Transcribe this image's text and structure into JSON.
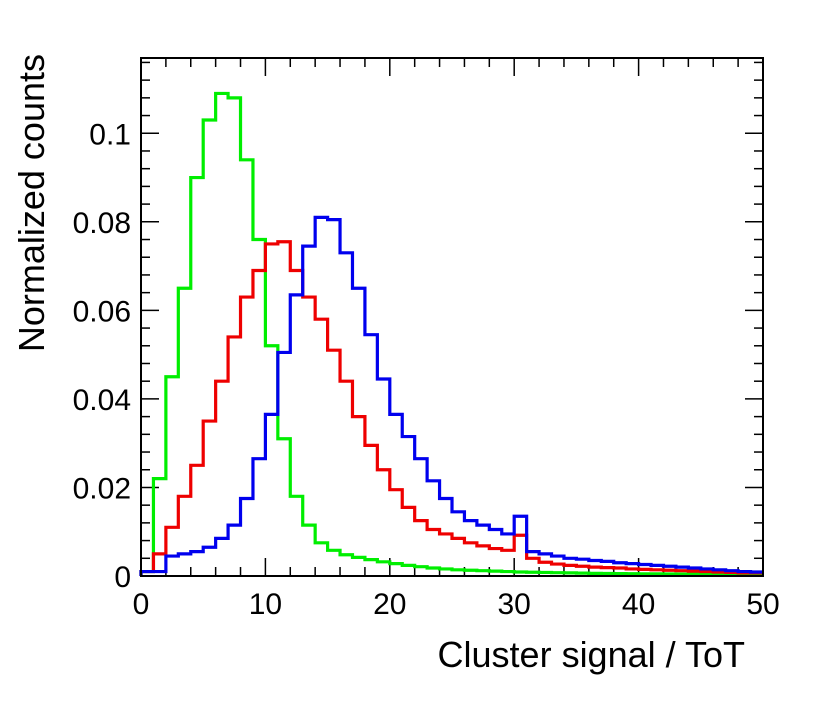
{
  "chart_data": {
    "type": "histogram",
    "title": "",
    "xlabel": "Cluster signal / ToT",
    "ylabel": "Normalized counts",
    "xlim": [
      0,
      50
    ],
    "ylim": [
      0,
      0.117
    ],
    "bin_width": 1,
    "x_ticks": [
      0,
      10,
      20,
      30,
      40,
      50
    ],
    "x_tick_labels": [
      "0",
      "10",
      "20",
      "30",
      "40",
      "50"
    ],
    "y_ticks": [
      0,
      0.02,
      0.04,
      0.06,
      0.08,
      0.1
    ],
    "y_tick_labels": [
      "0",
      "0.02",
      "0.04",
      "0.06",
      "0.08",
      "0.1"
    ],
    "series": [
      {
        "name": "green",
        "color": "#00ee00",
        "values": [
          0.001,
          0.022,
          0.045,
          0.065,
          0.09,
          0.103,
          0.109,
          0.108,
          0.094,
          0.076,
          0.052,
          0.031,
          0.018,
          0.0115,
          0.0075,
          0.0058,
          0.0048,
          0.0042,
          0.0037,
          0.0032,
          0.0028,
          0.0024,
          0.0021,
          0.0018,
          0.0016,
          0.0014,
          0.0013,
          0.0012,
          0.0011,
          0.001,
          0.0009,
          0.00085,
          0.0008,
          0.00075,
          0.0007,
          0.00065,
          0.0006,
          0.00058,
          0.00055,
          0.00052,
          0.0005,
          0.00048,
          0.00046,
          0.00044,
          0.00042,
          0.0004,
          0.00038,
          0.00036,
          0.00035,
          0.00034
        ]
      },
      {
        "name": "red",
        "color": "#ee0000",
        "values": [
          0.001,
          0.005,
          0.011,
          0.018,
          0.025,
          0.035,
          0.044,
          0.054,
          0.063,
          0.069,
          0.075,
          0.0755,
          0.069,
          0.063,
          0.058,
          0.051,
          0.044,
          0.036,
          0.0295,
          0.024,
          0.0195,
          0.0155,
          0.0125,
          0.0105,
          0.0095,
          0.0085,
          0.0075,
          0.0068,
          0.0062,
          0.0058,
          0.0092,
          0.004,
          0.0031,
          0.0027,
          0.0024,
          0.0022,
          0.002,
          0.0019,
          0.0018,
          0.0016,
          0.0015,
          0.0014,
          0.0013,
          0.0012,
          0.0011,
          0.001,
          0.0009,
          0.0008,
          0.0007,
          0.0007
        ]
      },
      {
        "name": "blue",
        "color": "#0000ee",
        "values": [
          0.001,
          0.001,
          0.0045,
          0.005,
          0.0055,
          0.0065,
          0.0085,
          0.0115,
          0.0175,
          0.0265,
          0.0365,
          0.0505,
          0.0635,
          0.0745,
          0.081,
          0.0805,
          0.073,
          0.065,
          0.0545,
          0.0445,
          0.0365,
          0.0315,
          0.0265,
          0.0215,
          0.0175,
          0.0145,
          0.0125,
          0.0115,
          0.0105,
          0.0095,
          0.0135,
          0.0055,
          0.005,
          0.0045,
          0.004,
          0.0038,
          0.0035,
          0.0033,
          0.003,
          0.0028,
          0.0026,
          0.0024,
          0.0022,
          0.002,
          0.0018,
          0.0016,
          0.0014,
          0.0012,
          0.001,
          0.0009
        ]
      }
    ]
  }
}
